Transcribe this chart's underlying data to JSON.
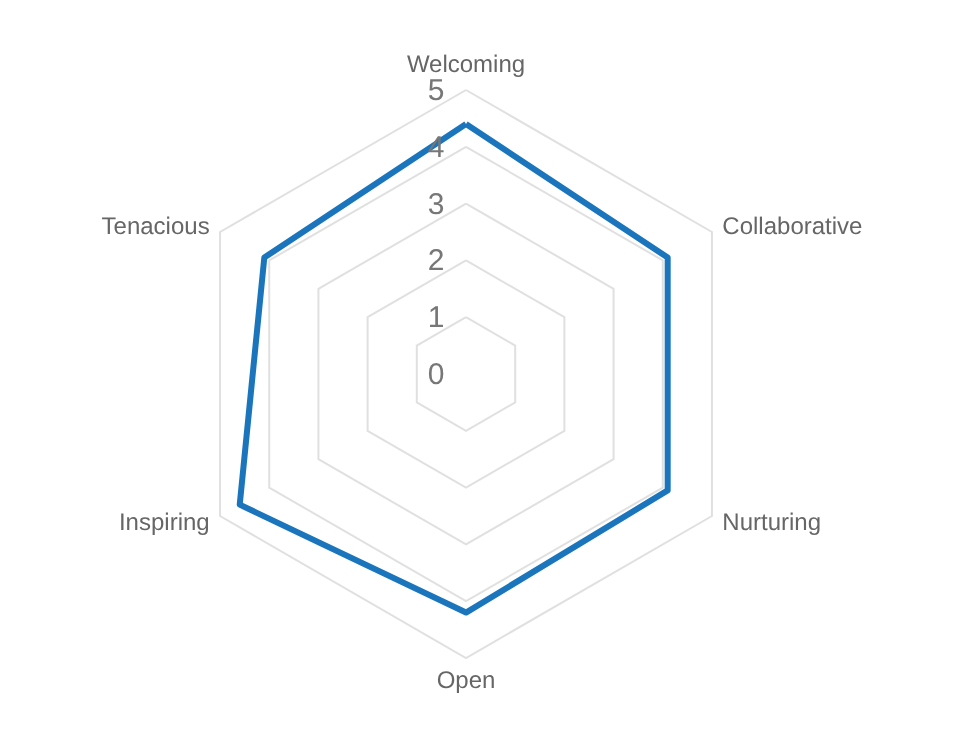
{
  "chart_data": {
    "type": "radar",
    "categories": [
      "Welcoming",
      "Collaborative",
      "Nurturing",
      "Open",
      "Inspiring",
      "Tenacious"
    ],
    "series": [
      {
        "color": "#1a75bc",
        "values": [
          4.4,
          4.1,
          4.1,
          4.2,
          4.6,
          4.1
        ]
      }
    ],
    "ylim": [
      0,
      5
    ],
    "yticks": [
      0,
      1,
      2,
      3,
      4,
      5
    ],
    "grid": true
  }
}
